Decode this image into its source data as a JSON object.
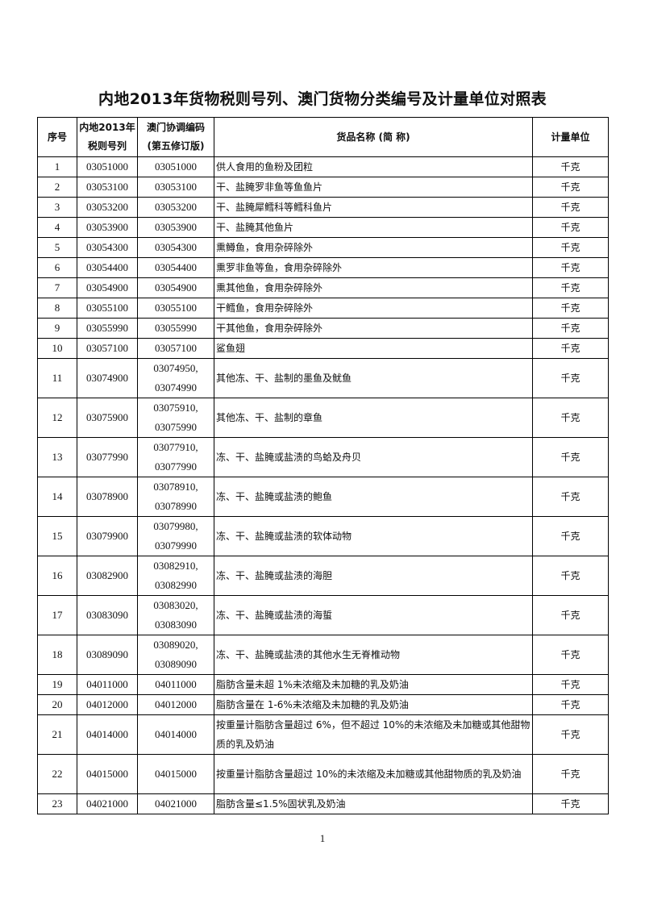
{
  "title": "内地2013年货物税则号列、澳门货物分类编号及计量单位对照表",
  "table": {
    "headers": {
      "seq": "序号",
      "mainland_line1": "内地2013年",
      "mainland_line2": "税则号列",
      "macau_line1": "澳门协调编码",
      "macau_line2": "(第五修订版)",
      "name": "货品名称 (简 称)",
      "unit": "计量单位"
    },
    "rows": [
      {
        "seq": "1",
        "mainland": "03051000",
        "macau": [
          "03051000"
        ],
        "name": "供人食用的鱼粉及团粒",
        "unit": "千克"
      },
      {
        "seq": "2",
        "mainland": "03053100",
        "macau": [
          "03053100"
        ],
        "name": "干、盐腌罗非鱼等鱼鱼片",
        "unit": "千克"
      },
      {
        "seq": "3",
        "mainland": "03053200",
        "macau": [
          "03053200"
        ],
        "name": "干、盐腌犀鳕科等鳕科鱼片",
        "unit": "千克"
      },
      {
        "seq": "4",
        "mainland": "03053900",
        "macau": [
          "03053900"
        ],
        "name": "干、盐腌其他鱼片",
        "unit": "千克"
      },
      {
        "seq": "5",
        "mainland": "03054300",
        "macau": [
          "03054300"
        ],
        "name": "熏鳟鱼，食用杂碎除外",
        "unit": "千克"
      },
      {
        "seq": "6",
        "mainland": "03054400",
        "macau": [
          "03054400"
        ],
        "name": "熏罗非鱼等鱼，食用杂碎除外",
        "unit": "千克"
      },
      {
        "seq": "7",
        "mainland": "03054900",
        "macau": [
          "03054900"
        ],
        "name": "熏其他鱼，食用杂碎除外",
        "unit": "千克"
      },
      {
        "seq": "8",
        "mainland": "03055100",
        "macau": [
          "03055100"
        ],
        "name": "干鳕鱼，食用杂碎除外",
        "unit": "千克"
      },
      {
        "seq": "9",
        "mainland": "03055990",
        "macau": [
          "03055990"
        ],
        "name": "干其他鱼，食用杂碎除外",
        "unit": "千克"
      },
      {
        "seq": "10",
        "mainland": "03057100",
        "macau": [
          "03057100"
        ],
        "name": "鲨鱼翅",
        "unit": "千克"
      },
      {
        "seq": "11",
        "mainland": "03074900",
        "macau": [
          "03074950,",
          "03074990"
        ],
        "name": "其他冻、干、盐制的墨鱼及鱿鱼",
        "unit": "千克"
      },
      {
        "seq": "12",
        "mainland": "03075900",
        "macau": [
          "03075910,",
          "03075990"
        ],
        "name": "其他冻、干、盐制的章鱼",
        "unit": "千克"
      },
      {
        "seq": "13",
        "mainland": "03077990",
        "macau": [
          "03077910,",
          "03077990"
        ],
        "name": "冻、干、盐腌或盐渍的鸟蛤及舟贝",
        "unit": "千克"
      },
      {
        "seq": "14",
        "mainland": "03078900",
        "macau": [
          "03078910,",
          "03078990"
        ],
        "name": "冻、干、盐腌或盐渍的鲍鱼",
        "unit": "千克"
      },
      {
        "seq": "15",
        "mainland": "03079900",
        "macau": [
          "03079980,",
          "03079990"
        ],
        "name": "冻、干、盐腌或盐渍的软体动物",
        "unit": "千克"
      },
      {
        "seq": "16",
        "mainland": "03082900",
        "macau": [
          "03082910,",
          "03082990"
        ],
        "name": "冻、干、盐腌或盐渍的海胆",
        "unit": "千克"
      },
      {
        "seq": "17",
        "mainland": "03083090",
        "macau": [
          "03083020,",
          "03083090"
        ],
        "name": "冻、干、盐腌或盐渍的海蜇",
        "unit": "千克"
      },
      {
        "seq": "18",
        "mainland": "03089090",
        "macau": [
          "03089020,",
          "03089090"
        ],
        "name": "冻、干、盐腌或盐渍的其他水生无脊椎动物",
        "unit": "千克"
      },
      {
        "seq": "19",
        "mainland": "04011000",
        "macau": [
          "04011000"
        ],
        "name": "脂肪含量未超 1%未浓缩及未加糖的乳及奶油",
        "unit": "千克"
      },
      {
        "seq": "20",
        "mainland": "04012000",
        "macau": [
          "04012000"
        ],
        "name": "脂肪含量在 1-6%未浓缩及未加糖的乳及奶油",
        "unit": "千克"
      },
      {
        "seq": "21",
        "mainland": "04014000",
        "macau": [
          "04014000"
        ],
        "name": "按重量计脂肪含量超过 6%，但不超过 10%的未浓缩及未加糖或其他甜物质的乳及奶油",
        "unit": "千克",
        "tall": true
      },
      {
        "seq": "22",
        "mainland": "04015000",
        "macau": [
          "04015000"
        ],
        "name": "按重量计脂肪含量超过 10%的未浓缩及未加糖或其他甜物质的乳及奶油",
        "unit": "千克",
        "tall": true
      },
      {
        "seq": "23",
        "mainland": "04021000",
        "macau": [
          "04021000"
        ],
        "name": "脂肪含量≤1.5%固状乳及奶油",
        "unit": "千克"
      }
    ]
  },
  "page_number": "1"
}
